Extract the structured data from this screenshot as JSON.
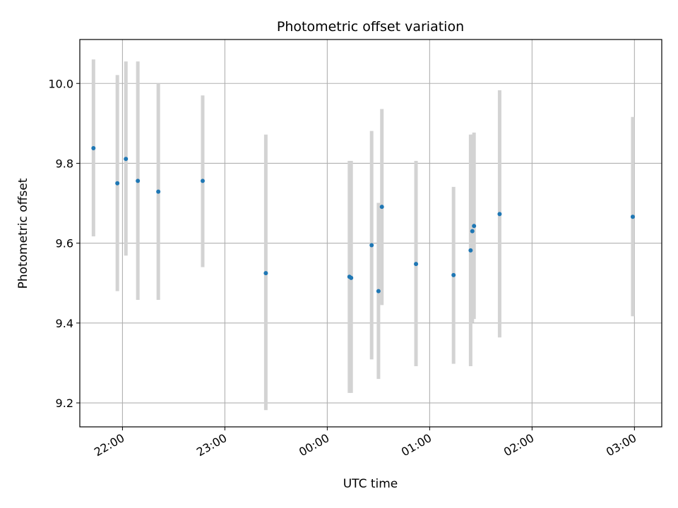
{
  "chart_data": {
    "type": "scatter",
    "title": "Photometric offset variation",
    "xlabel": "UTC time",
    "ylabel": "Photometric offset",
    "xlim": [
      "21:35",
      "03:16"
    ],
    "ylim": [
      9.14,
      10.11
    ],
    "x_ticks": [
      "22:00",
      "23:00",
      "00:00",
      "01:00",
      "02:00",
      "03:00"
    ],
    "y_ticks": [
      "9.2",
      "9.4",
      "9.6",
      "9.8",
      "10.0"
    ],
    "grid": true,
    "errorbar_color": "#d3d3d3",
    "point_color": "#1f77b4",
    "points": [
      {
        "x": "21:43",
        "y": 9.838,
        "lo": 9.617,
        "hi": 10.06
      },
      {
        "x": "21:57",
        "y": 9.75,
        "lo": 9.48,
        "hi": 10.021
      },
      {
        "x": "22:02",
        "y": 9.811,
        "lo": 9.569,
        "hi": 10.055
      },
      {
        "x": "22:09",
        "y": 9.756,
        "lo": 9.458,
        "hi": 10.055
      },
      {
        "x": "22:21",
        "y": 9.729,
        "lo": 9.458,
        "hi": 10.0
      },
      {
        "x": "22:47",
        "y": 9.756,
        "lo": 9.54,
        "hi": 9.97
      },
      {
        "x": "23:24",
        "y": 9.525,
        "lo": 9.182,
        "hi": 9.872
      },
      {
        "x": "00:13",
        "y": 9.516,
        "lo": 9.225,
        "hi": 9.806
      },
      {
        "x": "00:14",
        "y": 9.513,
        "lo": 9.225,
        "hi": 9.806
      },
      {
        "x": "00:26",
        "y": 9.595,
        "lo": 9.309,
        "hi": 9.881
      },
      {
        "x": "00:30",
        "y": 9.48,
        "lo": 9.26,
        "hi": 9.701
      },
      {
        "x": "00:32",
        "y": 9.691,
        "lo": 9.445,
        "hi": 9.936
      },
      {
        "x": "00:52",
        "y": 9.548,
        "lo": 9.292,
        "hi": 9.806
      },
      {
        "x": "01:14",
        "y": 9.52,
        "lo": 9.298,
        "hi": 9.741
      },
      {
        "x": "01:24",
        "y": 9.582,
        "lo": 9.292,
        "hi": 9.872
      },
      {
        "x": "01:25",
        "y": 9.63,
        "lo": 9.401,
        "hi": 9.872
      },
      {
        "x": "01:26",
        "y": 9.643,
        "lo": 9.41,
        "hi": 9.877
      },
      {
        "x": "01:41",
        "y": 9.673,
        "lo": 9.364,
        "hi": 9.983
      },
      {
        "x": "02:59",
        "y": 9.666,
        "lo": 9.417,
        "hi": 9.916
      }
    ]
  }
}
